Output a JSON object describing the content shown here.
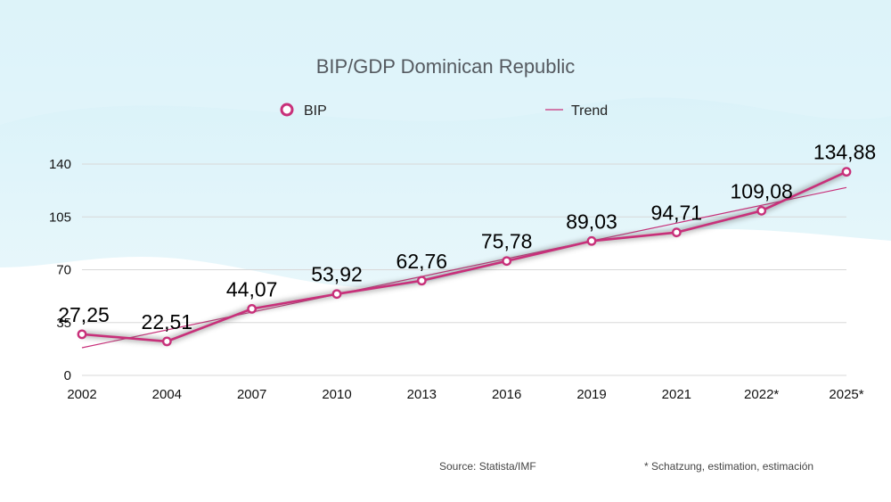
{
  "chart_data": {
    "type": "line",
    "title": "BIP/GDP Dominican Republic",
    "categories": [
      "2002",
      "2004",
      "2007",
      "2010",
      "2013",
      "2016",
      "2019",
      "2021",
      "2022*",
      "2025*"
    ],
    "series": [
      {
        "name": "BIP",
        "values": [
          27.25,
          22.51,
          44.07,
          53.92,
          62.76,
          75.78,
          89.03,
          94.71,
          109.08,
          134.88
        ]
      },
      {
        "name": "Trend",
        "type": "linear-trend"
      }
    ],
    "data_labels": [
      "27,25",
      "22,51",
      "44,07",
      "53,92",
      "62,76",
      "75,78",
      "89,03",
      "94,71",
      "109,08",
      "134,88"
    ],
    "yticks": [
      "0",
      "35",
      "70",
      "105",
      "140"
    ],
    "ylim": [
      0,
      140
    ],
    "grid": true,
    "legend_position": "top",
    "colors": {
      "series": "#c8307a",
      "trend": "#c8307a",
      "grid": "#d8d8d8"
    }
  },
  "footer": {
    "source": "Source: Statista/IMF",
    "note": "* Schatzung, estimation, estimación"
  }
}
